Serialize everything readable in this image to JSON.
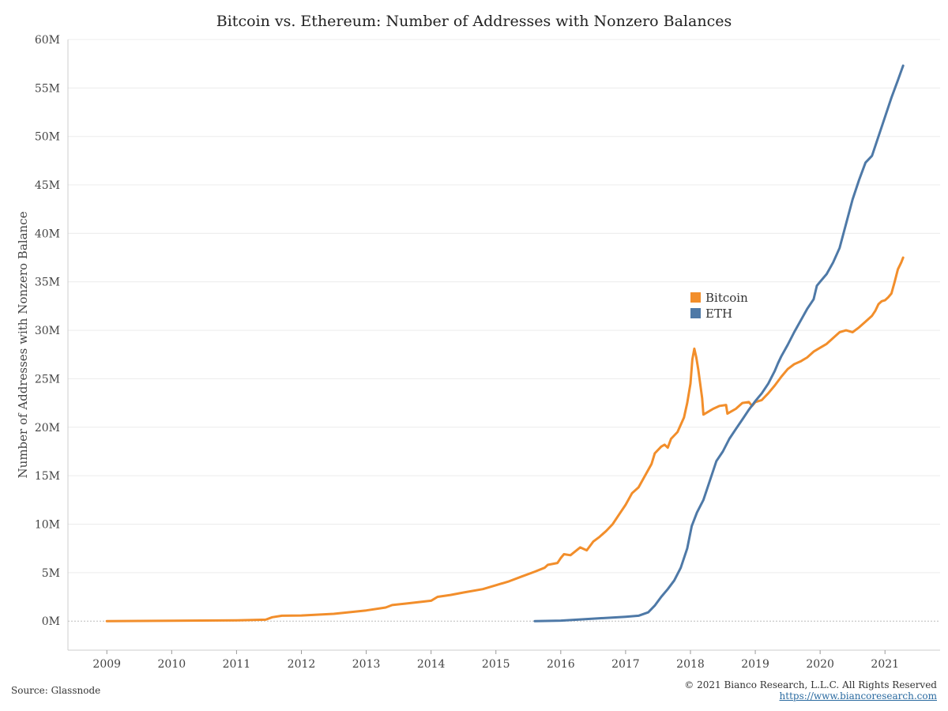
{
  "chart_data": {
    "type": "line",
    "title": "Bitcoin vs. Ethereum: Number of Addresses with Nonzero Balances",
    "ylabel": "Number of Addresses with Nonzero Balance",
    "xlabel": "",
    "x_unit": "year",
    "xlim": [
      2008.4,
      2021.85
    ],
    "ylim": [
      -3,
      60
    ],
    "x_ticks": [
      2009,
      2010,
      2011,
      2012,
      2013,
      2014,
      2015,
      2016,
      2017,
      2018,
      2019,
      2020,
      2021
    ],
    "x_tick_labels": [
      "2009",
      "2010",
      "2011",
      "2012",
      "2013",
      "2014",
      "2015",
      "2016",
      "2017",
      "2018",
      "2019",
      "2020",
      "2021"
    ],
    "y_ticks": [
      0,
      5,
      10,
      15,
      20,
      25,
      30,
      35,
      40,
      45,
      50,
      55,
      60
    ],
    "y_tick_labels": [
      "0M",
      "5M",
      "10M",
      "15M",
      "20M",
      "25M",
      "30M",
      "35M",
      "40M",
      "45M",
      "50M",
      "55M",
      "60M"
    ],
    "y_unit": "millions of addresses",
    "grid": true,
    "legend_position": "center-right",
    "series": [
      {
        "name": "Bitcoin",
        "color": "#f28e2b",
        "points": [
          [
            2009.0,
            0.0
          ],
          [
            2010.0,
            0.03
          ],
          [
            2011.0,
            0.08
          ],
          [
            2011.45,
            0.15
          ],
          [
            2011.55,
            0.4
          ],
          [
            2011.7,
            0.55
          ],
          [
            2012.0,
            0.58
          ],
          [
            2012.5,
            0.75
          ],
          [
            2013.0,
            1.1
          ],
          [
            2013.3,
            1.4
          ],
          [
            2013.4,
            1.65
          ],
          [
            2013.6,
            1.8
          ],
          [
            2014.0,
            2.1
          ],
          [
            2014.1,
            2.5
          ],
          [
            2014.3,
            2.7
          ],
          [
            2014.5,
            2.95
          ],
          [
            2014.8,
            3.3
          ],
          [
            2015.0,
            3.7
          ],
          [
            2015.2,
            4.1
          ],
          [
            2015.4,
            4.6
          ],
          [
            2015.6,
            5.1
          ],
          [
            2015.75,
            5.5
          ],
          [
            2015.8,
            5.8
          ],
          [
            2015.95,
            6.0
          ],
          [
            2016.0,
            6.5
          ],
          [
            2016.05,
            6.9
          ],
          [
            2016.15,
            6.8
          ],
          [
            2016.3,
            7.6
          ],
          [
            2016.4,
            7.3
          ],
          [
            2016.5,
            8.2
          ],
          [
            2016.6,
            8.7
          ],
          [
            2016.7,
            9.3
          ],
          [
            2016.8,
            10.0
          ],
          [
            2016.9,
            11.0
          ],
          [
            2017.0,
            12.0
          ],
          [
            2017.1,
            13.2
          ],
          [
            2017.2,
            13.8
          ],
          [
            2017.3,
            15.0
          ],
          [
            2017.4,
            16.2
          ],
          [
            2017.45,
            17.3
          ],
          [
            2017.55,
            18.0
          ],
          [
            2017.6,
            18.2
          ],
          [
            2017.65,
            17.9
          ],
          [
            2017.7,
            18.8
          ],
          [
            2017.8,
            19.5
          ],
          [
            2017.9,
            21.0
          ],
          [
            2017.95,
            22.5
          ],
          [
            2018.0,
            24.5
          ],
          [
            2018.03,
            27.0
          ],
          [
            2018.06,
            28.1
          ],
          [
            2018.09,
            27.2
          ],
          [
            2018.12,
            26.0
          ],
          [
            2018.15,
            24.5
          ],
          [
            2018.18,
            23.0
          ],
          [
            2018.2,
            21.3
          ],
          [
            2018.3,
            21.7
          ],
          [
            2018.35,
            21.9
          ],
          [
            2018.45,
            22.2
          ],
          [
            2018.55,
            22.3
          ],
          [
            2018.57,
            21.4
          ],
          [
            2018.62,
            21.6
          ],
          [
            2018.7,
            21.9
          ],
          [
            2018.8,
            22.5
          ],
          [
            2018.9,
            22.6
          ],
          [
            2018.95,
            22.2
          ],
          [
            2019.0,
            22.6
          ],
          [
            2019.1,
            22.8
          ],
          [
            2019.2,
            23.5
          ],
          [
            2019.3,
            24.3
          ],
          [
            2019.4,
            25.2
          ],
          [
            2019.5,
            26.0
          ],
          [
            2019.6,
            26.5
          ],
          [
            2019.7,
            26.8
          ],
          [
            2019.8,
            27.2
          ],
          [
            2019.9,
            27.8
          ],
          [
            2020.0,
            28.2
          ],
          [
            2020.1,
            28.6
          ],
          [
            2020.2,
            29.2
          ],
          [
            2020.3,
            29.8
          ],
          [
            2020.4,
            30.0
          ],
          [
            2020.5,
            29.8
          ],
          [
            2020.6,
            30.3
          ],
          [
            2020.7,
            30.9
          ],
          [
            2020.8,
            31.5
          ],
          [
            2020.85,
            32.0
          ],
          [
            2020.9,
            32.7
          ],
          [
            2020.95,
            33.0
          ],
          [
            2021.0,
            33.1
          ],
          [
            2021.05,
            33.4
          ],
          [
            2021.1,
            33.8
          ],
          [
            2021.15,
            35.0
          ],
          [
            2021.2,
            36.3
          ],
          [
            2021.25,
            37.0
          ],
          [
            2021.28,
            37.5
          ]
        ]
      },
      {
        "name": "ETH",
        "color": "#4e79a7",
        "points": [
          [
            2015.6,
            0.0
          ],
          [
            2016.0,
            0.05
          ],
          [
            2016.5,
            0.25
          ],
          [
            2017.0,
            0.45
          ],
          [
            2017.2,
            0.55
          ],
          [
            2017.35,
            0.9
          ],
          [
            2017.45,
            1.6
          ],
          [
            2017.55,
            2.5
          ],
          [
            2017.65,
            3.3
          ],
          [
            2017.75,
            4.2
          ],
          [
            2017.85,
            5.5
          ],
          [
            2017.95,
            7.5
          ],
          [
            2018.02,
            9.8
          ],
          [
            2018.1,
            11.2
          ],
          [
            2018.2,
            12.5
          ],
          [
            2018.3,
            14.5
          ],
          [
            2018.4,
            16.5
          ],
          [
            2018.5,
            17.5
          ],
          [
            2018.6,
            18.8
          ],
          [
            2018.7,
            19.8
          ],
          [
            2018.8,
            20.8
          ],
          [
            2018.9,
            21.8
          ],
          [
            2019.0,
            22.7
          ],
          [
            2019.1,
            23.5
          ],
          [
            2019.2,
            24.5
          ],
          [
            2019.3,
            25.8
          ],
          [
            2019.35,
            26.6
          ],
          [
            2019.4,
            27.3
          ],
          [
            2019.5,
            28.5
          ],
          [
            2019.6,
            29.8
          ],
          [
            2019.7,
            31.0
          ],
          [
            2019.8,
            32.2
          ],
          [
            2019.9,
            33.2
          ],
          [
            2019.95,
            34.6
          ],
          [
            2020.0,
            35.0
          ],
          [
            2020.1,
            35.8
          ],
          [
            2020.2,
            37.0
          ],
          [
            2020.3,
            38.5
          ],
          [
            2020.4,
            41.0
          ],
          [
            2020.5,
            43.5
          ],
          [
            2020.6,
            45.5
          ],
          [
            2020.7,
            47.3
          ],
          [
            2020.8,
            48.0
          ],
          [
            2020.9,
            50.0
          ],
          [
            2021.0,
            52.0
          ],
          [
            2021.1,
            54.0
          ],
          [
            2021.2,
            55.8
          ],
          [
            2021.28,
            57.3
          ]
        ]
      }
    ]
  },
  "footer": {
    "source": "Source: Glassnode",
    "copyright": "© 2021 Bianco Research, L.L.C. All Rights Reserved",
    "link": "https://www.biancoresearch.com"
  }
}
